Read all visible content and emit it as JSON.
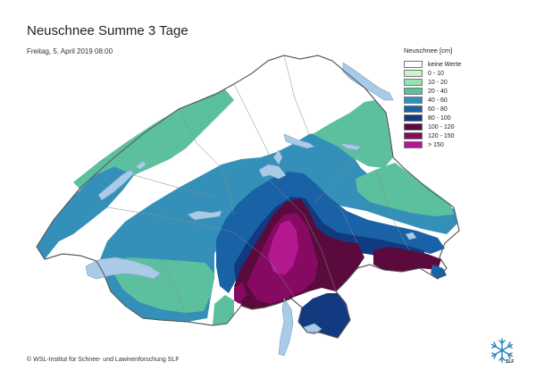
{
  "title": "Neuschnee Summe 3 Tage",
  "subtitle": "Freitag, 5. April 2019 08:00",
  "legend": {
    "title": "Neuschnee [cm]",
    "items": [
      {
        "label": "keine Werte",
        "color": "#ffffff"
      },
      {
        "label": "0 - 10",
        "color": "#ccf5cc"
      },
      {
        "label": "10 - 20",
        "color": "#94e3b0"
      },
      {
        "label": "20 - 40",
        "color": "#5cc09e"
      },
      {
        "label": "40 - 60",
        "color": "#3590b9"
      },
      {
        "label": "60 - 80",
        "color": "#1a62a6"
      },
      {
        "label": "80 - 100",
        "color": "#113a80"
      },
      {
        "label": "100 - 120",
        "color": "#5a0a3c"
      },
      {
        "label": "120 - 150",
        "color": "#860a62"
      },
      {
        "label": "> 150",
        "color": "#b4188f"
      }
    ]
  },
  "copyright": "© WSL-Institut für Schnee- und Lawinenforschung SLF",
  "logo": {
    "text": "SLF",
    "icon": "snowflake-icon"
  },
  "colors": {
    "lake": "#a9cbe8",
    "border": "#555555",
    "region_line": "#8a8a8a"
  }
}
